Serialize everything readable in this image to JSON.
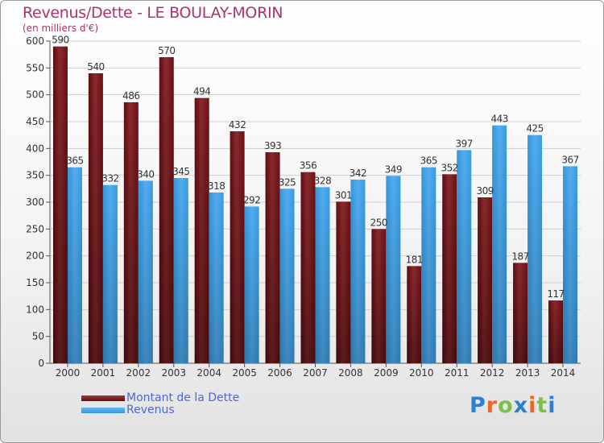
{
  "chart_data": {
    "type": "bar",
    "title": "Revenus/Dette - LE BOULAY-MORIN",
    "subtitle": "(en milliers d'€)",
    "categories": [
      "2000",
      "2001",
      "2002",
      "2003",
      "2004",
      "2005",
      "2006",
      "2007",
      "2008",
      "2009",
      "2010",
      "2011",
      "2012",
      "2013",
      "2014"
    ],
    "series": [
      {
        "name": "Montant de la Dette",
        "color": "#7d1a1f",
        "values": [
          590,
          540,
          486,
          570,
          494,
          432,
          393,
          356,
          301,
          250,
          181,
          352,
          309,
          187,
          117
        ]
      },
      {
        "name": "Revenus",
        "color": "#3fa0e4",
        "values": [
          365,
          332,
          340,
          345,
          318,
          292,
          325,
          328,
          342,
          349,
          365,
          397,
          443,
          425,
          367
        ]
      }
    ],
    "yticks": [
      0,
      50,
      100,
      150,
      200,
      250,
      300,
      350,
      400,
      450,
      500,
      550,
      600
    ],
    "ylim": [
      0,
      600
    ],
    "grid": true,
    "legend_position": "bottom-left"
  },
  "logo": {
    "text": "Proxiti"
  }
}
